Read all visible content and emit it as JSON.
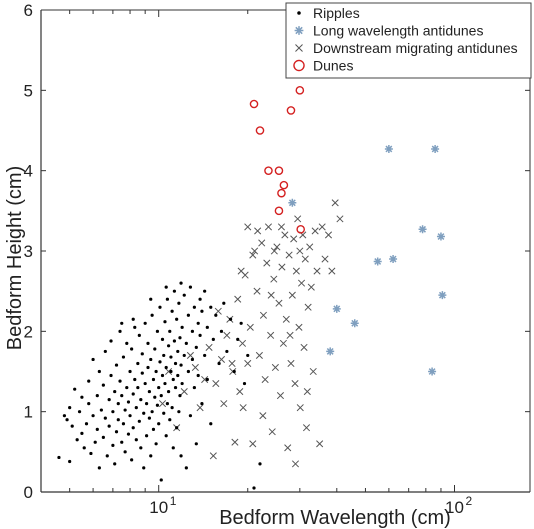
{
  "chart_data": {
    "type": "scatter",
    "title": "",
    "xlabel": "Bedform Wavelength (cm)",
    "ylabel": "Bedform Height (cm)",
    "x_scale": "log",
    "xlim": [
      4,
      180
    ],
    "ylim": [
      0,
      6
    ],
    "x_ticks": [
      10,
      100
    ],
    "x_tick_labels": [
      {
        "base": "10",
        "exp": "1"
      },
      {
        "base": "10",
        "exp": "2"
      }
    ],
    "y_ticks": [
      0,
      1,
      2,
      3,
      4,
      5,
      6
    ],
    "y_tick_labels": [
      "0",
      "1",
      "2",
      "3",
      "4",
      "5",
      "6"
    ],
    "grid": false,
    "legend_position": "top-right",
    "series": [
      {
        "name": "Ripples",
        "marker": "dot",
        "color": "#000000",
        "points": [
          [
            4.6,
            0.43
          ],
          [
            4.8,
            0.95
          ],
          [
            4.9,
            0.9
          ],
          [
            5.0,
            1.05
          ],
          [
            5.0,
            0.38
          ],
          [
            5.1,
            0.82
          ],
          [
            5.2,
            1.28
          ],
          [
            5.3,
            0.65
          ],
          [
            5.4,
            1.0
          ],
          [
            5.5,
            0.73
          ],
          [
            5.5,
            1.18
          ],
          [
            5.6,
            0.55
          ],
          [
            5.7,
            0.85
          ],
          [
            5.8,
            1.1
          ],
          [
            5.8,
            1.38
          ],
          [
            5.9,
            0.48
          ],
          [
            6.0,
            0.95
          ],
          [
            6.0,
            1.65
          ],
          [
            6.1,
            0.62
          ],
          [
            6.2,
            1.2
          ],
          [
            6.2,
            0.78
          ],
          [
            6.3,
            1.5
          ],
          [
            6.3,
            0.3
          ],
          [
            6.4,
            1.02
          ],
          [
            6.5,
            0.68
          ],
          [
            6.5,
            1.33
          ],
          [
            6.6,
            0.92
          ],
          [
            6.6,
            1.75
          ],
          [
            6.7,
            0.45
          ],
          [
            6.8,
            1.15
          ],
          [
            6.8,
            0.82
          ],
          [
            6.9,
            1.45
          ],
          [
            6.9,
            1.88
          ],
          [
            7.0,
            0.58
          ],
          [
            7.0,
            1.0
          ],
          [
            7.1,
            1.25
          ],
          [
            7.1,
            0.35
          ],
          [
            7.2,
            0.75
          ],
          [
            7.2,
            1.58
          ],
          [
            7.3,
            1.1
          ],
          [
            7.3,
            0.9
          ],
          [
            7.4,
            1.38
          ],
          [
            7.4,
            2.0
          ],
          [
            7.5,
            0.62
          ],
          [
            7.5,
            1.2
          ],
          [
            7.6,
            0.85
          ],
          [
            7.6,
            1.68
          ],
          [
            7.7,
            1.02
          ],
          [
            7.7,
            0.5
          ],
          [
            7.8,
            1.3
          ],
          [
            7.8,
            1.85
          ],
          [
            7.9,
            0.72
          ],
          [
            7.9,
            1.12
          ],
          [
            8.0,
            1.5
          ],
          [
            8.0,
            0.95
          ],
          [
            8.1,
            0.4
          ],
          [
            8.1,
            1.78
          ],
          [
            8.2,
            1.22
          ],
          [
            8.2,
            0.8
          ],
          [
            8.3,
            1.4
          ],
          [
            8.3,
            2.05
          ],
          [
            8.4,
            0.65
          ],
          [
            8.4,
            1.05
          ],
          [
            8.5,
            1.6
          ],
          [
            8.5,
            1.3
          ],
          [
            8.6,
            0.88
          ],
          [
            8.6,
            1.95
          ],
          [
            8.7,
            0.55
          ],
          [
            8.7,
            1.15
          ],
          [
            8.8,
            1.48
          ],
          [
            8.8,
            1.72
          ],
          [
            8.9,
            0.98
          ],
          [
            8.9,
            0.3
          ],
          [
            9.0,
            1.35
          ],
          [
            9.0,
            2.1
          ],
          [
            9.1,
            0.7
          ],
          [
            9.1,
            1.1
          ],
          [
            9.2,
            1.55
          ],
          [
            9.2,
            1.85
          ],
          [
            9.3,
            0.92
          ],
          [
            9.3,
            1.25
          ],
          [
            9.4,
            0.45
          ],
          [
            9.4,
            1.65
          ],
          [
            9.5,
            1.0
          ],
          [
            9.5,
            2.2
          ],
          [
            9.6,
            1.4
          ],
          [
            9.6,
            0.78
          ],
          [
            9.7,
            1.18
          ],
          [
            9.7,
            1.78
          ],
          [
            9.8,
            0.6
          ],
          [
            9.8,
            1.5
          ],
          [
            9.9,
            2.0
          ],
          [
            9.9,
            1.08
          ],
          [
            10.0,
            1.3
          ],
          [
            10.0,
            0.85
          ],
          [
            10.1,
            1.62
          ],
          [
            10.1,
            2.3
          ],
          [
            10.2,
            0.15
          ],
          [
            10.2,
            1.2
          ],
          [
            10.3,
            1.9
          ],
          [
            10.3,
            1.45
          ],
          [
            10.4,
            0.98
          ],
          [
            10.4,
            1.7
          ],
          [
            10.5,
            2.12
          ],
          [
            10.5,
            1.35
          ],
          [
            10.6,
            0.7
          ],
          [
            10.6,
            1.55
          ],
          [
            10.7,
            1.1
          ],
          [
            10.7,
            2.4
          ],
          [
            10.8,
            1.82
          ],
          [
            10.8,
            1.25
          ],
          [
            10.9,
            0.9
          ],
          [
            10.9,
            2.0
          ],
          [
            11.0,
            1.5
          ],
          [
            11.0,
            1.68
          ],
          [
            11.1,
            2.25
          ],
          [
            11.1,
            1.05
          ],
          [
            11.2,
            1.4
          ],
          [
            11.2,
            0.55
          ],
          [
            11.3,
            1.88
          ],
          [
            11.3,
            2.5
          ],
          [
            11.4,
            1.3
          ],
          [
            11.4,
            1.6
          ],
          [
            11.5,
            0.8
          ],
          [
            11.5,
            2.15
          ],
          [
            11.6,
            1.75
          ],
          [
            11.6,
            1.45
          ],
          [
            11.7,
            1.0
          ],
          [
            11.7,
            2.35
          ],
          [
            11.8,
            1.92
          ],
          [
            11.8,
            1.2
          ],
          [
            11.9,
            0.45
          ],
          [
            11.9,
            1.58
          ],
          [
            12.0,
            2.05
          ],
          [
            12.0,
            1.35
          ],
          [
            12.2,
            2.45
          ],
          [
            12.2,
            1.7
          ],
          [
            12.4,
            0.3
          ],
          [
            12.4,
            1.85
          ],
          [
            12.6,
            2.2
          ],
          [
            12.6,
            1.5
          ],
          [
            12.8,
            0.95
          ],
          [
            12.8,
            2.55
          ],
          [
            13.0,
            1.65
          ],
          [
            13.0,
            2.0
          ],
          [
            13.2,
            1.3
          ],
          [
            13.2,
            2.3
          ],
          [
            13.4,
            1.8
          ],
          [
            13.4,
            0.6
          ],
          [
            13.6,
            2.1
          ],
          [
            13.6,
            1.45
          ],
          [
            13.8,
            2.4
          ],
          [
            13.8,
            1.95
          ],
          [
            14.0,
            1.1
          ],
          [
            14.0,
            2.25
          ],
          [
            14.3,
            1.7
          ],
          [
            14.3,
            2.5
          ],
          [
            14.6,
            2.05
          ],
          [
            14.6,
            1.4
          ],
          [
            15.0,
            2.3
          ],
          [
            15.0,
            0.85
          ],
          [
            15.3,
            1.9
          ],
          [
            15.6,
            2.2
          ],
          [
            16.0,
            1.6
          ],
          [
            16.3,
            2.0
          ],
          [
            16.6,
            2.35
          ],
          [
            17.0,
            1.75
          ],
          [
            17.5,
            2.15
          ],
          [
            18.0,
            1.5
          ],
          [
            18.5,
            1.9
          ],
          [
            19.0,
            2.1
          ],
          [
            19.5,
            1.35
          ],
          [
            20.0,
            1.7
          ],
          [
            21.0,
            0.05
          ],
          [
            22.0,
            0.35
          ],
          [
            7.5,
            2.1
          ],
          [
            8.2,
            2.15
          ],
          [
            9.4,
            2.4
          ],
          [
            10.6,
            2.55
          ],
          [
            11.9,
            2.6
          ]
        ]
      },
      {
        "name": "Long wavelength antidunes",
        "marker": "asterisk",
        "color": "#7f9fbf",
        "points": [
          [
            28.3,
            3.6
          ],
          [
            40.0,
            2.28
          ],
          [
            38.0,
            1.75
          ],
          [
            46.0,
            2.1
          ],
          [
            55.0,
            2.87
          ],
          [
            60.0,
            4.27
          ],
          [
            62.0,
            2.9
          ],
          [
            78.0,
            3.27
          ],
          [
            84.0,
            1.5
          ],
          [
            86.0,
            4.27
          ],
          [
            90.0,
            3.18
          ],
          [
            91.0,
            2.45
          ]
        ]
      },
      {
        "name": "Downstream migrating antidunes",
        "marker": "x",
        "color": "#555555",
        "points": [
          [
            10.3,
            1.1
          ],
          [
            10.8,
            1.5
          ],
          [
            11.5,
            0.8
          ],
          [
            12.2,
            1.25
          ],
          [
            12.8,
            1.7
          ],
          [
            13.3,
            1.55
          ],
          [
            13.8,
            1.05
          ],
          [
            14.3,
            1.4
          ],
          [
            14.8,
            1.8
          ],
          [
            15.3,
            0.45
          ],
          [
            15.6,
            1.35
          ],
          [
            15.9,
            2.25
          ],
          [
            16.3,
            1.65
          ],
          [
            16.6,
            1.1
          ],
          [
            17.0,
            1.95
          ],
          [
            17.4,
            2.15
          ],
          [
            17.8,
            1.5
          ],
          [
            18.1,
            0.62
          ],
          [
            18.5,
            2.4
          ],
          [
            18.8,
            1.25
          ],
          [
            19.2,
            1.85
          ],
          [
            19.6,
            2.7
          ],
          [
            20.0,
            3.3
          ],
          [
            20.0,
            1.6
          ],
          [
            20.4,
            2.05
          ],
          [
            20.8,
            0.6
          ],
          [
            21.1,
            3.0
          ],
          [
            21.5,
            2.5
          ],
          [
            21.9,
            1.7
          ],
          [
            22.3,
            3.1
          ],
          [
            22.6,
            2.2
          ],
          [
            22.9,
            1.4
          ],
          [
            23.2,
            2.85
          ],
          [
            23.5,
            3.3
          ],
          [
            23.9,
            1.95
          ],
          [
            24.2,
            0.75
          ],
          [
            24.5,
            2.65
          ],
          [
            24.8,
            1.55
          ],
          [
            25.1,
            3.05
          ],
          [
            25.5,
            2.35
          ],
          [
            25.8,
            1.2
          ],
          [
            26.1,
            2.8
          ],
          [
            26.4,
            1.85
          ],
          [
            26.7,
            3.2
          ],
          [
            27.0,
            2.15
          ],
          [
            27.3,
            0.55
          ],
          [
            27.6,
            2.95
          ],
          [
            28.0,
            1.6
          ],
          [
            28.3,
            2.45
          ],
          [
            28.6,
            3.15
          ],
          [
            28.9,
            1.35
          ],
          [
            29.2,
            2.75
          ],
          [
            29.5,
            3.4
          ],
          [
            29.8,
            2.05
          ],
          [
            30.1,
            1.05
          ],
          [
            30.4,
            2.6
          ],
          [
            30.7,
            3.2
          ],
          [
            31.0,
            1.8
          ],
          [
            31.3,
            2.9
          ],
          [
            31.6,
            0.8
          ],
          [
            32.0,
            2.3
          ],
          [
            32.4,
            3.05
          ],
          [
            32.8,
            2.55
          ],
          [
            33.3,
            1.5
          ],
          [
            33.8,
            3.25
          ],
          [
            34.3,
            2.75
          ],
          [
            35.0,
            0.6
          ],
          [
            35.7,
            3.3
          ],
          [
            36.5,
            2.9
          ],
          [
            37.5,
            3.2
          ],
          [
            38.5,
            2.75
          ],
          [
            39.5,
            3.6
          ],
          [
            41.0,
            3.4
          ],
          [
            19.0,
            2.75
          ],
          [
            21.6,
            3.25
          ],
          [
            24.0,
            2.45
          ],
          [
            26.0,
            3.3
          ],
          [
            27.8,
            1.95
          ],
          [
            29.0,
            0.35
          ],
          [
            30.0,
            3.0
          ],
          [
            31.8,
            1.25
          ],
          [
            22.5,
            0.95
          ],
          [
            24.6,
            3.0
          ],
          [
            17.7,
            1.6
          ],
          [
            19.3,
            1.05
          ],
          [
            20.8,
            2.95
          ]
        ]
      },
      {
        "name": "Dunes",
        "marker": "circle",
        "color": "#d42020",
        "points": [
          [
            21.0,
            4.83
          ],
          [
            22.0,
            4.5
          ],
          [
            23.5,
            4.0
          ],
          [
            25.5,
            4.0
          ],
          [
            26.0,
            3.72
          ],
          [
            26.5,
            3.82
          ],
          [
            25.5,
            3.5
          ],
          [
            28.0,
            4.75
          ],
          [
            30.0,
            5.0
          ],
          [
            30.2,
            3.27
          ]
        ]
      }
    ]
  }
}
